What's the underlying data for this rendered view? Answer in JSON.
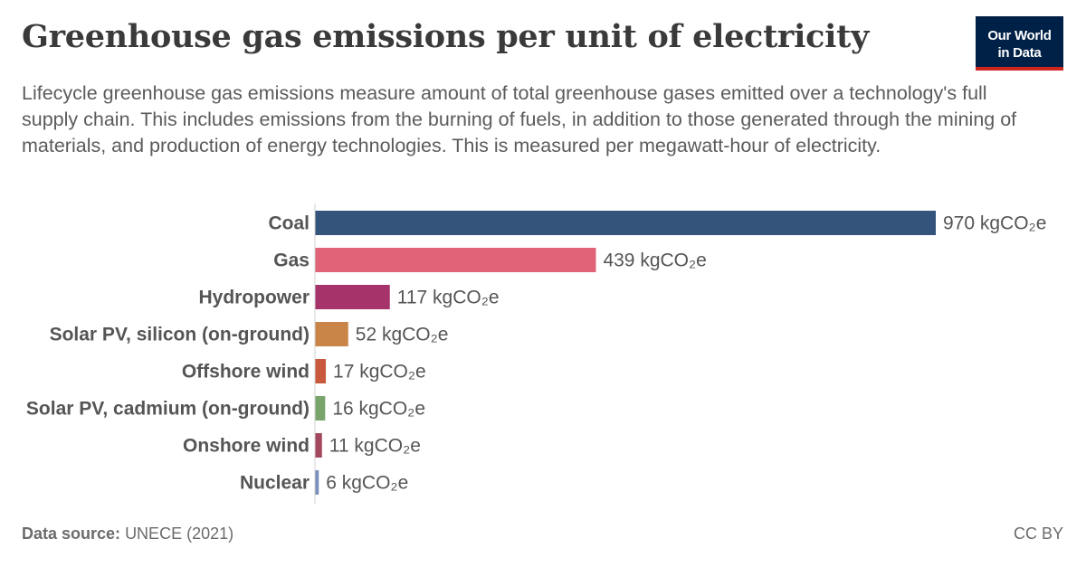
{
  "header": {
    "title": "Greenhouse gas emissions per unit of electricity",
    "subtitle": "Lifecycle greenhouse gas emissions measure amount of total greenhouse gases emitted over a technology's full supply chain. This includes emissions from the burning of fuels, in addition to those generated through the mining of materials, and production of energy technologies. This is measured per megawatt-hour of electricity.",
    "logo_line1": "Our World",
    "logo_line2": "in Data"
  },
  "footer": {
    "source_label": "Data source:",
    "source_value": "UNECE (2021)",
    "license": "CC BY"
  },
  "colors": {
    "logo_bg": "#002147",
    "logo_accent": "#ce261e"
  },
  "chart_data": {
    "type": "bar",
    "orientation": "horizontal",
    "unit": "kgCO₂e",
    "categories": [
      "Coal",
      "Gas",
      "Hydropower",
      "Solar PV, silicon (on-ground)",
      "Offshore wind",
      "Solar PV, cadmium (on-ground)",
      "Onshore wind",
      "Nuclear"
    ],
    "values": [
      970,
      439,
      117,
      52,
      17,
      16,
      11,
      6
    ],
    "value_labels": [
      "970 kgCO₂e",
      "439 kgCO₂e",
      "117 kgCO₂e",
      "52 kgCO₂e",
      "17 kgCO₂e",
      "16 kgCO₂e",
      "11 kgCO₂e",
      "6 kgCO₂e"
    ],
    "colors": [
      "#34547b",
      "#e06377",
      "#a7336b",
      "#c98547",
      "#c8593c",
      "#79a56d",
      "#a4485d",
      "#7b8fbd"
    ],
    "xlim": [
      0,
      970
    ],
    "grid": false,
    "legend": "none"
  }
}
